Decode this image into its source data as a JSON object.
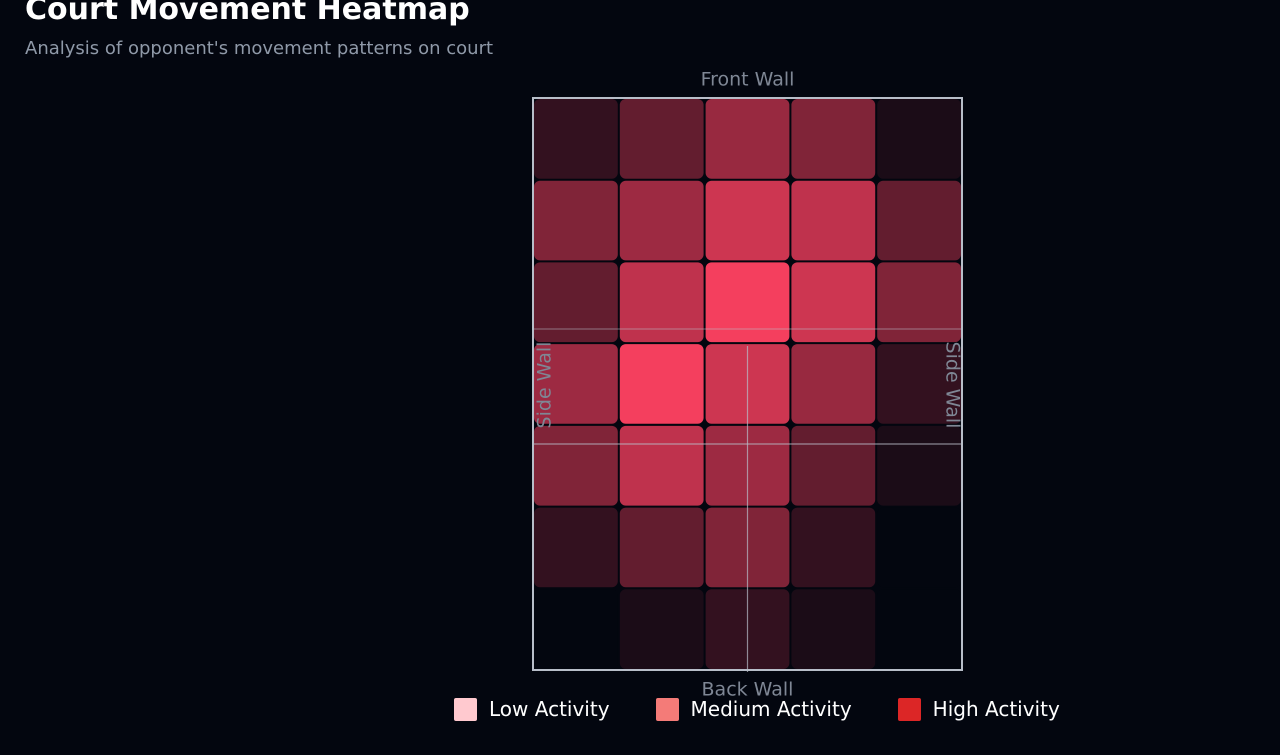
{
  "header": {
    "title": "Court Movement Heatmap",
    "subtitle": "Analysis of opponent's movement patterns on court"
  },
  "chart_data": {
    "type": "heatmap",
    "rows": 7,
    "cols": 5,
    "values": [
      [
        0.2,
        0.4,
        0.62,
        0.52,
        0.1
      ],
      [
        0.52,
        0.64,
        0.84,
        0.78,
        0.4
      ],
      [
        0.4,
        0.78,
        1.0,
        0.84,
        0.52
      ],
      [
        0.64,
        1.0,
        0.84,
        0.62,
        0.2
      ],
      [
        0.52,
        0.78,
        0.64,
        0.4,
        0.1
      ],
      [
        0.2,
        0.4,
        0.52,
        0.2,
        0.0
      ],
      [
        0.0,
        0.1,
        0.2,
        0.1,
        0.0
      ]
    ],
    "labels": {
      "front": "Front Wall",
      "back": "Back Wall",
      "left": "Side Wall",
      "right": "Side Wall"
    },
    "high_color": "#f43f5e",
    "background_color": "#03060f",
    "court_line_color": "#b8bec9",
    "wall_label_color": "#7f8795"
  },
  "legend": [
    {
      "label": "Low Activity",
      "color": "#ffc9cf"
    },
    {
      "label": "Medium Activity",
      "color": "#f47b78"
    },
    {
      "label": "High Activity",
      "color": "#dc2626"
    }
  ]
}
